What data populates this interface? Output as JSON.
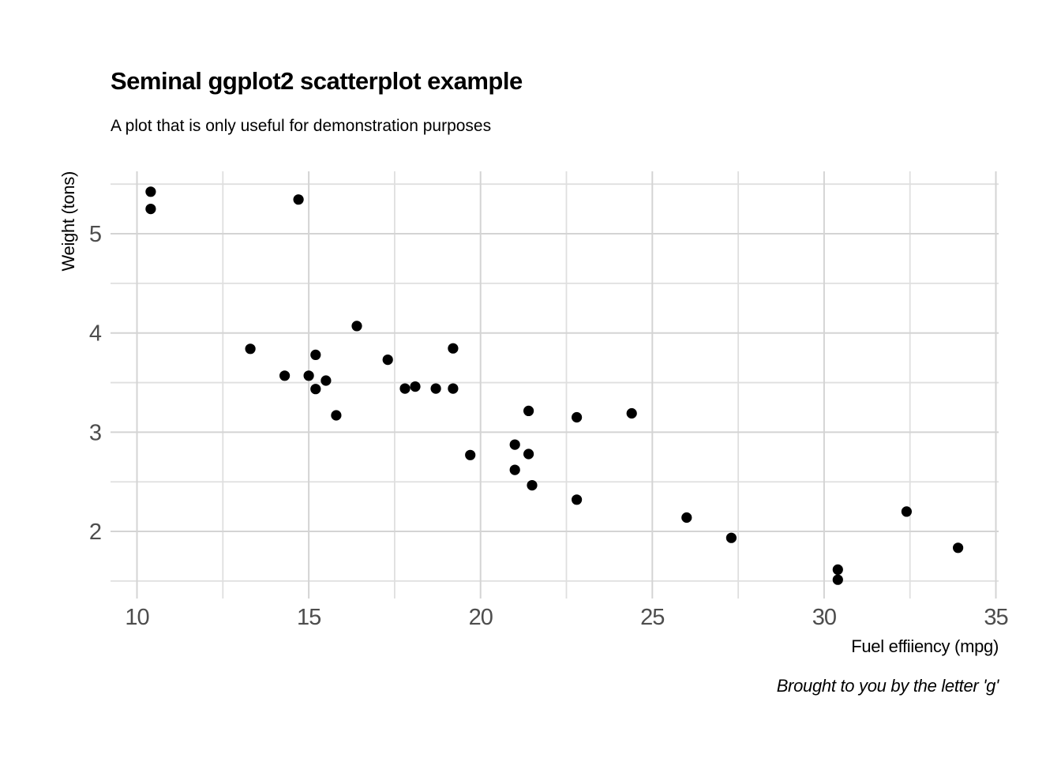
{
  "chart_data": {
    "type": "scatter",
    "title": "Seminal ggplot2 scatterplot example",
    "subtitle": "A plot that is only useful for demonstration purposes",
    "xlabel": "Fuel effiiency (mpg)",
    "ylabel": "Weight (tons)",
    "caption": "Brought to you by the letter 'g'",
    "x": [
      21.0,
      21.0,
      22.8,
      21.4,
      18.7,
      18.1,
      14.3,
      24.4,
      22.8,
      19.2,
      17.8,
      16.4,
      17.3,
      15.2,
      10.4,
      10.4,
      14.7,
      32.4,
      30.4,
      33.9,
      21.5,
      15.5,
      15.2,
      13.3,
      19.2,
      27.3,
      26.0,
      30.4,
      15.8,
      19.7,
      15.0,
      21.4
    ],
    "y": [
      2.62,
      2.875,
      2.32,
      3.215,
      3.44,
      3.46,
      3.57,
      3.19,
      3.15,
      3.44,
      3.44,
      4.07,
      3.73,
      3.78,
      5.25,
      5.424,
      5.345,
      2.2,
      1.615,
      1.835,
      2.465,
      3.52,
      3.435,
      3.84,
      3.845,
      1.935,
      2.14,
      1.513,
      3.17,
      2.77,
      3.57,
      2.78
    ],
    "xlim": [
      9.23,
      35.08
    ],
    "ylim": [
      1.324,
      5.629
    ],
    "x_major_ticks": [
      10,
      15,
      20,
      25,
      30,
      35
    ],
    "x_minor_ticks": [
      12.5,
      17.5,
      22.5,
      27.5,
      32.5
    ],
    "y_major_ticks": [
      2,
      3,
      4,
      5
    ],
    "y_minor_ticks": [
      1.5,
      2.5,
      3.5,
      4.5,
      5.5
    ],
    "x_tick_labels": [
      "10",
      "15",
      "20",
      "25",
      "30",
      "35"
    ],
    "y_tick_labels": [
      "2",
      "3",
      "4",
      "5"
    ],
    "grid": "major+minor",
    "legend_position": "none",
    "point_radius": 6.6,
    "colors": {
      "point": "#000000",
      "grid_major": "#d4d4d4",
      "grid_minor": "#dfdfdf",
      "tick_label": "#4d4d4d",
      "text": "#000000",
      "background": "#ffffff"
    }
  }
}
